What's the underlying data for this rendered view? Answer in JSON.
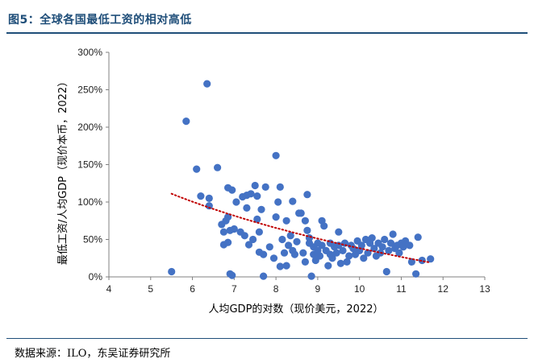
{
  "figure": {
    "title": "图5：全球各国最低工资的相对高低",
    "source": "数据来源：ILO，东吴证券研究所"
  },
  "chart_data": {
    "type": "scatter",
    "title": "",
    "xlabel": "人均GDP的对数（现价美元，2022）",
    "ylabel": "最低工资/人均GDP（现价本币，2022）",
    "xlim": [
      4,
      13
    ],
    "ylim": [
      0,
      300
    ],
    "x_ticks": [
      "4",
      "5",
      "6",
      "7",
      "8",
      "9",
      "10",
      "11",
      "12",
      "13"
    ],
    "y_ticks": [
      "0%",
      "50%",
      "100%",
      "150%",
      "200%",
      "250%",
      "300%"
    ],
    "grid": false,
    "legend": "none",
    "colors": {
      "points": "#4472c4",
      "trend": "#c00000",
      "axis": "#808080"
    },
    "trend": {
      "style": "dotted",
      "fit": "logarithmic",
      "x_start": 5.5,
      "x_end": 11.7
    },
    "points": [
      {
        "x": 5.5,
        "y": 7
      },
      {
        "x": 5.85,
        "y": 208
      },
      {
        "x": 6.1,
        "y": 144
      },
      {
        "x": 6.2,
        "y": 108
      },
      {
        "x": 6.35,
        "y": 258
      },
      {
        "x": 6.4,
        "y": 105
      },
      {
        "x": 6.4,
        "y": 95
      },
      {
        "x": 6.6,
        "y": 146
      },
      {
        "x": 6.7,
        "y": 70
      },
      {
        "x": 6.75,
        "y": 60
      },
      {
        "x": 6.75,
        "y": 43
      },
      {
        "x": 6.8,
        "y": 75
      },
      {
        "x": 6.85,
        "y": 80
      },
      {
        "x": 6.85,
        "y": 46
      },
      {
        "x": 6.85,
        "y": 119
      },
      {
        "x": 6.9,
        "y": 4
      },
      {
        "x": 6.9,
        "y": 62
      },
      {
        "x": 6.95,
        "y": 116
      },
      {
        "x": 6.95,
        "y": 2
      },
      {
        "x": 7.0,
        "y": 64
      },
      {
        "x": 7.05,
        "y": 100
      },
      {
        "x": 7.15,
        "y": 60
      },
      {
        "x": 7.2,
        "y": 107
      },
      {
        "x": 7.25,
        "y": 55
      },
      {
        "x": 7.3,
        "y": 92
      },
      {
        "x": 7.3,
        "y": 109
      },
      {
        "x": 7.35,
        "y": 43
      },
      {
        "x": 7.4,
        "y": 111
      },
      {
        "x": 7.45,
        "y": 50
      },
      {
        "x": 7.5,
        "y": 122
      },
      {
        "x": 7.55,
        "y": 77
      },
      {
        "x": 7.55,
        "y": 108
      },
      {
        "x": 7.6,
        "y": 60
      },
      {
        "x": 7.6,
        "y": 33
      },
      {
        "x": 7.65,
        "y": 90
      },
      {
        "x": 7.7,
        "y": 30
      },
      {
        "x": 7.7,
        "y": 1
      },
      {
        "x": 7.75,
        "y": 120
      },
      {
        "x": 7.85,
        "y": 40
      },
      {
        "x": 7.95,
        "y": 25
      },
      {
        "x": 8.0,
        "y": 162
      },
      {
        "x": 8.0,
        "y": 80
      },
      {
        "x": 8.05,
        "y": 100
      },
      {
        "x": 8.1,
        "y": 120
      },
      {
        "x": 8.1,
        "y": 14
      },
      {
        "x": 8.15,
        "y": 50
      },
      {
        "x": 8.2,
        "y": 32
      },
      {
        "x": 8.25,
        "y": 75
      },
      {
        "x": 8.25,
        "y": 15
      },
      {
        "x": 8.3,
        "y": 42
      },
      {
        "x": 8.35,
        "y": 55
      },
      {
        "x": 8.4,
        "y": 101
      },
      {
        "x": 8.4,
        "y": 35
      },
      {
        "x": 8.45,
        "y": 30
      },
      {
        "x": 8.5,
        "y": 47
      },
      {
        "x": 8.55,
        "y": 85
      },
      {
        "x": 8.6,
        "y": 85
      },
      {
        "x": 8.65,
        "y": 32
      },
      {
        "x": 8.7,
        "y": 75
      },
      {
        "x": 8.7,
        "y": 20
      },
      {
        "x": 8.75,
        "y": 110
      },
      {
        "x": 8.75,
        "y": 62
      },
      {
        "x": 8.8,
        "y": 45
      },
      {
        "x": 8.8,
        "y": 52
      },
      {
        "x": 8.85,
        "y": 1
      },
      {
        "x": 8.9,
        "y": 30
      },
      {
        "x": 8.9,
        "y": 40
      },
      {
        "x": 8.95,
        "y": 22
      },
      {
        "x": 9.0,
        "y": 45
      },
      {
        "x": 9.0,
        "y": 35
      },
      {
        "x": 9.05,
        "y": 28
      },
      {
        "x": 9.1,
        "y": 75
      },
      {
        "x": 9.1,
        "y": 42
      },
      {
        "x": 9.15,
        "y": 68
      },
      {
        "x": 9.2,
        "y": 35
      },
      {
        "x": 9.25,
        "y": 15
      },
      {
        "x": 9.3,
        "y": 30
      },
      {
        "x": 9.3,
        "y": 45
      },
      {
        "x": 9.35,
        "y": 25
      },
      {
        "x": 9.4,
        "y": 40
      },
      {
        "x": 9.45,
        "y": 32
      },
      {
        "x": 9.5,
        "y": 60
      },
      {
        "x": 9.5,
        "y": 42
      },
      {
        "x": 9.55,
        "y": 18
      },
      {
        "x": 9.6,
        "y": 35
      },
      {
        "x": 9.65,
        "y": 45
      },
      {
        "x": 9.7,
        "y": 20
      },
      {
        "x": 9.75,
        "y": 28
      },
      {
        "x": 9.8,
        "y": 42
      },
      {
        "x": 9.85,
        "y": 38
      },
      {
        "x": 9.9,
        "y": 30
      },
      {
        "x": 9.95,
        "y": 48
      },
      {
        "x": 10.0,
        "y": 35
      },
      {
        "x": 10.05,
        "y": 42
      },
      {
        "x": 10.1,
        "y": 25
      },
      {
        "x": 10.15,
        "y": 50
      },
      {
        "x": 10.2,
        "y": 32
      },
      {
        "x": 10.25,
        "y": 45
      },
      {
        "x": 10.3,
        "y": 52
      },
      {
        "x": 10.35,
        "y": 38
      },
      {
        "x": 10.4,
        "y": 28
      },
      {
        "x": 10.45,
        "y": 45
      },
      {
        "x": 10.5,
        "y": 32
      },
      {
        "x": 10.55,
        "y": 40
      },
      {
        "x": 10.6,
        "y": 50
      },
      {
        "x": 10.65,
        "y": 7
      },
      {
        "x": 10.7,
        "y": 35
      },
      {
        "x": 10.75,
        "y": 45
      },
      {
        "x": 10.8,
        "y": 57
      },
      {
        "x": 10.85,
        "y": 38
      },
      {
        "x": 10.9,
        "y": 42
      },
      {
        "x": 10.95,
        "y": 32
      },
      {
        "x": 11.0,
        "y": 45
      },
      {
        "x": 11.05,
        "y": 40
      },
      {
        "x": 11.1,
        "y": 48
      },
      {
        "x": 11.2,
        "y": 42
      },
      {
        "x": 11.25,
        "y": 20
      },
      {
        "x": 11.35,
        "y": 4
      },
      {
        "x": 11.4,
        "y": 53
      },
      {
        "x": 11.5,
        "y": 22
      },
      {
        "x": 11.7,
        "y": 24
      }
    ]
  }
}
